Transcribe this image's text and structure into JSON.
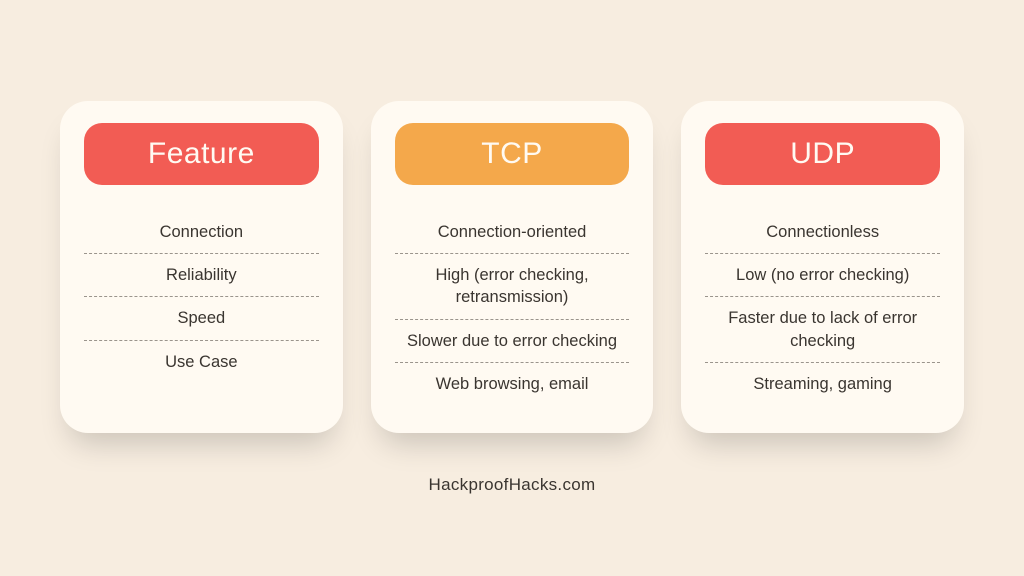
{
  "infographic": {
    "type": "comparison-cards",
    "background_color": "#f7ede0",
    "card_background": "#fffaf2",
    "card_border_radius": 28,
    "header_border_radius": 18,
    "header_text_color": "#fffaf2",
    "body_text_color": "#3a3530",
    "divider_color": "#9a948c",
    "divider_style": "dashed",
    "header_fontsize": 30,
    "item_fontsize": 16.5,
    "footer_fontsize": 17,
    "card_shadow": "0 20px 30px -10px rgba(0,0,0,0.18)"
  },
  "cards": [
    {
      "header_label": "Feature",
      "header_color": "#f25c54",
      "items": [
        "Connection",
        "Reliability",
        "Speed",
        "Use Case"
      ]
    },
    {
      "header_label": "TCP",
      "header_color": "#f4a84b",
      "items": [
        "Connection-oriented",
        "High (error checking, retransmission)",
        "Slower due to error checking",
        "Web browsing, email"
      ]
    },
    {
      "header_label": "UDP",
      "header_color": "#f25c54",
      "items": [
        "Connectionless",
        "Low (no error checking)",
        "Faster due to lack of error checking",
        "Streaming, gaming"
      ]
    }
  ],
  "footer": {
    "text": "HackproofHacks.com"
  }
}
